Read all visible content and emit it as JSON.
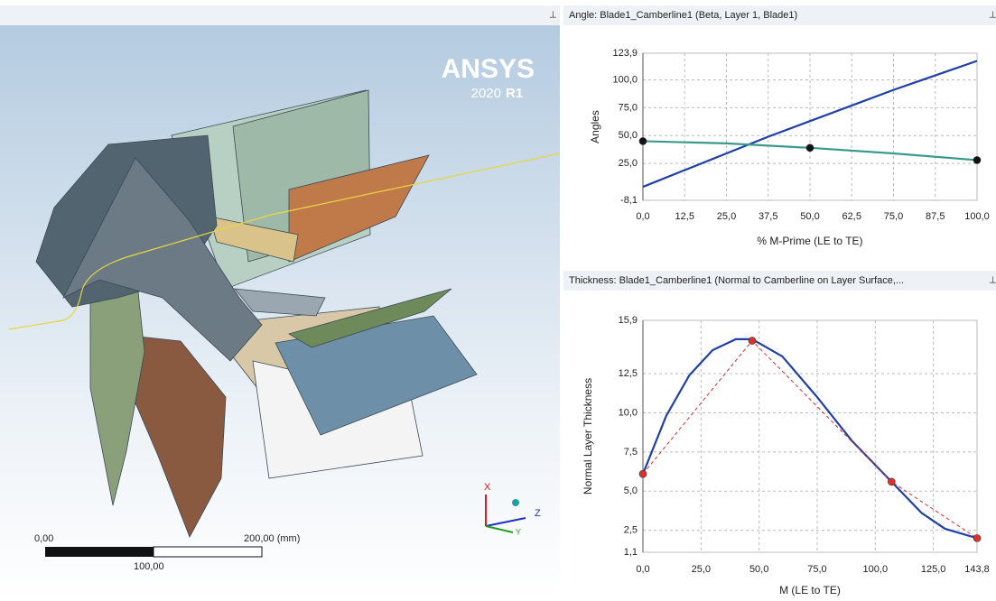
{
  "viewport": {
    "logo": "ANSYS",
    "version": "2020",
    "release": "R1",
    "scale_bar": {
      "start": "0,00",
      "end": "200,00 (mm)",
      "mid": "100,00"
    },
    "triad": {
      "x": "X",
      "y": "Y",
      "z": "Z"
    }
  },
  "chart_data": [
    {
      "type": "line",
      "title": "Angle: Blade1_Camberline1 (Beta, Layer 1, Blade1)",
      "x_label": "% M-Prime (LE to TE)",
      "y_label": "Angles",
      "grid": true,
      "xlim": [
        0,
        100
      ],
      "ylim": [
        -8.1,
        123.9
      ],
      "xticks": [
        {
          "value": 0,
          "label": "0,0"
        },
        {
          "value": 12.5,
          "label": "12,5"
        },
        {
          "value": 25,
          "label": "25,0"
        },
        {
          "value": 37.5,
          "label": "37,5"
        },
        {
          "value": 50,
          "label": "50,0"
        },
        {
          "value": 62.5,
          "label": "62,5"
        },
        {
          "value": 75,
          "label": "75,0"
        },
        {
          "value": 87.5,
          "label": "87,5"
        },
        {
          "value": 100,
          "label": "100,0"
        }
      ],
      "yticks": [
        {
          "value": -8.1,
          "label": "-8,1"
        },
        {
          "value": 25,
          "label": "25,0"
        },
        {
          "value": 50,
          "label": "50,0"
        },
        {
          "value": 75,
          "label": "75,0"
        },
        {
          "value": 100,
          "label": "100,0"
        },
        {
          "value": 123.9,
          "label": "123,9"
        }
      ],
      "series": [
        {
          "color": "#1f3fa8",
          "style": "solid",
          "markers": false,
          "x": [
            0,
            12.5,
            25,
            37.5,
            50,
            62.5,
            75,
            87.5,
            100
          ],
          "values": [
            4,
            19,
            34,
            49,
            63,
            77,
            91,
            104,
            117
          ]
        },
        {
          "color": "#3a9a8a",
          "style": "solid",
          "markers": false,
          "x": [
            0,
            25,
            50,
            75,
            100
          ],
          "values": [
            45,
            43,
            39,
            34,
            28
          ]
        },
        {
          "color": "#111111",
          "style": "none",
          "markers": true,
          "x": [
            0,
            50,
            100
          ],
          "values": [
            45,
            39,
            28
          ]
        }
      ]
    },
    {
      "type": "line",
      "title": "Thickness: Blade1_Camberline1 (Normal to Camberline on Layer Surface,...",
      "x_label": "M (LE to TE)",
      "y_label": "Normal Layer Thickness",
      "grid": true,
      "xlim": [
        0,
        143.8
      ],
      "ylim": [
        1.1,
        15.9
      ],
      "xticks": [
        {
          "value": 0,
          "label": "0,0"
        },
        {
          "value": 25,
          "label": "25,0"
        },
        {
          "value": 50,
          "label": "50,0"
        },
        {
          "value": 75,
          "label": "75,0"
        },
        {
          "value": 100,
          "label": "100,0"
        },
        {
          "value": 125,
          "label": "125,0"
        },
        {
          "value": 143.8,
          "label": "143,8"
        }
      ],
      "yticks": [
        {
          "value": 1.1,
          "label": "1,1"
        },
        {
          "value": 2.5,
          "label": "2,5"
        },
        {
          "value": 5,
          "label": "5,0"
        },
        {
          "value": 7.5,
          "label": "7,5"
        },
        {
          "value": 10,
          "label": "10,0"
        },
        {
          "value": 12.5,
          "label": "12,5"
        },
        {
          "value": 15.9,
          "label": "15,9"
        }
      ],
      "series": [
        {
          "color": "#1f3fa8",
          "style": "solid",
          "markers": false,
          "x": [
            0,
            10,
            20,
            30,
            40,
            47,
            60,
            75,
            90,
            107,
            120,
            130,
            143.8
          ],
          "values": [
            6.1,
            9.8,
            12.4,
            14.0,
            14.7,
            14.7,
            13.6,
            11.0,
            8.2,
            5.6,
            3.6,
            2.6,
            2.0
          ]
        },
        {
          "color": "#e0302a",
          "style": "dashed",
          "markers": true,
          "x": [
            0,
            47,
            107,
            143.8
          ],
          "values": [
            6.1,
            14.6,
            5.6,
            2.0
          ]
        }
      ]
    }
  ]
}
